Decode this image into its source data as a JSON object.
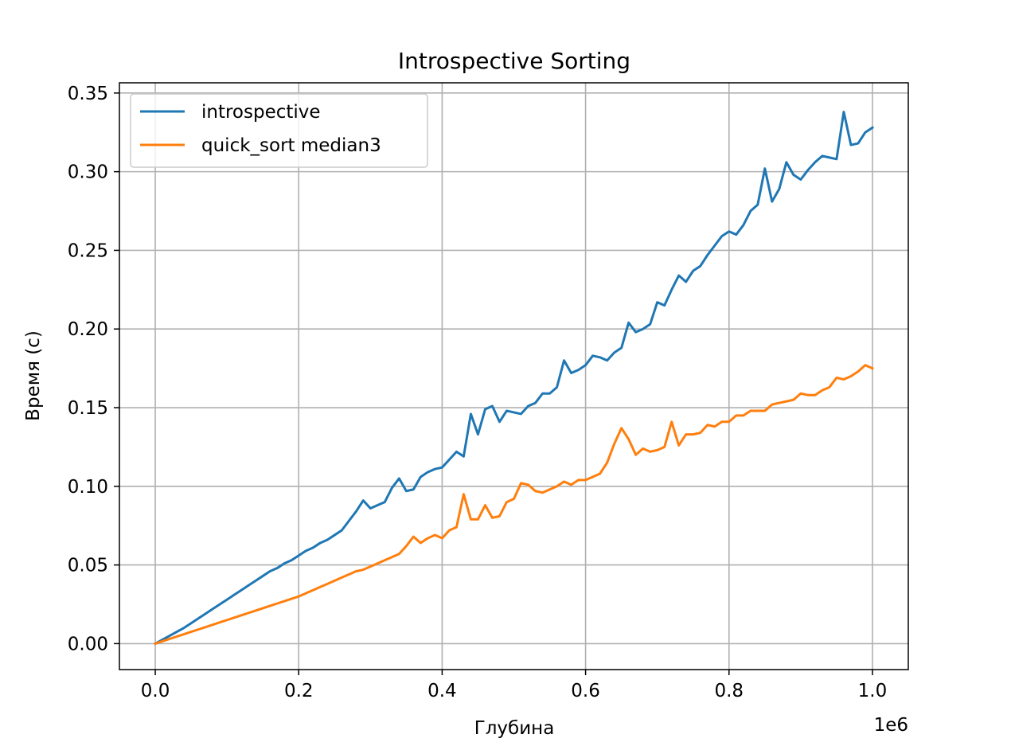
{
  "chart_data": {
    "type": "line",
    "title": "Introspective Sorting",
    "xlabel": "Глубина",
    "ylabel": "Время (с)",
    "x_offset_label": "1e6",
    "xlim": [
      -50000,
      1050000
    ],
    "ylim": [
      -0.0165,
      0.3565
    ],
    "xticks": [
      0,
      200000,
      400000,
      600000,
      800000,
      1000000
    ],
    "xtick_labels": [
      "0.0",
      "0.2",
      "0.4",
      "0.6",
      "0.8",
      "1.0"
    ],
    "yticks": [
      0,
      0.05,
      0.1,
      0.15,
      0.2,
      0.25,
      0.3,
      0.35
    ],
    "ytick_labels": [
      "0.00",
      "0.05",
      "0.10",
      "0.15",
      "0.20",
      "0.25",
      "0.30",
      "0.35"
    ],
    "grid": true,
    "legend_position": "top-left",
    "x": [
      0,
      10000,
      20000,
      30000,
      40000,
      50000,
      60000,
      70000,
      80000,
      90000,
      100000,
      110000,
      120000,
      130000,
      140000,
      150000,
      160000,
      170000,
      180000,
      190000,
      200000,
      210000,
      220000,
      230000,
      240000,
      250000,
      260000,
      270000,
      280000,
      290000,
      300000,
      310000,
      320000,
      330000,
      340000,
      350000,
      360000,
      370000,
      380000,
      390000,
      400000,
      410000,
      420000,
      430000,
      440000,
      450000,
      460000,
      470000,
      480000,
      490000,
      500000,
      510000,
      520000,
      530000,
      540000,
      550000,
      560000,
      570000,
      580000,
      590000,
      600000,
      610000,
      620000,
      630000,
      640000,
      650000,
      660000,
      670000,
      680000,
      690000,
      700000,
      710000,
      720000,
      730000,
      740000,
      750000,
      760000,
      770000,
      780000,
      790000,
      800000,
      810000,
      820000,
      830000,
      840000,
      850000,
      860000,
      870000,
      880000,
      890000,
      900000,
      910000,
      920000,
      930000,
      940000,
      950000,
      960000,
      970000,
      980000,
      990000,
      1000000
    ],
    "series": [
      {
        "name": "introspective",
        "color": "#1f77b4",
        "values": [
          0.0,
          0.0025,
          0.005,
          0.0075,
          0.01,
          0.013,
          0.016,
          0.019,
          0.022,
          0.025,
          0.028,
          0.031,
          0.034,
          0.037,
          0.04,
          0.043,
          0.046,
          0.048,
          0.051,
          0.053,
          0.056,
          0.059,
          0.061,
          0.064,
          0.066,
          0.069,
          0.072,
          0.078,
          0.084,
          0.091,
          0.086,
          0.088,
          0.09,
          0.099,
          0.105,
          0.097,
          0.098,
          0.106,
          0.109,
          0.111,
          0.112,
          0.117,
          0.122,
          0.119,
          0.146,
          0.133,
          0.149,
          0.151,
          0.141,
          0.148,
          0.147,
          0.146,
          0.151,
          0.153,
          0.159,
          0.159,
          0.163,
          0.18,
          0.172,
          0.174,
          0.177,
          0.183,
          0.182,
          0.18,
          0.185,
          0.188,
          0.204,
          0.198,
          0.2,
          0.203,
          0.217,
          0.215,
          0.225,
          0.234,
          0.23,
          0.237,
          0.24,
          0.247,
          0.253,
          0.259,
          0.262,
          0.26,
          0.266,
          0.275,
          0.279,
          0.302,
          0.281,
          0.289,
          0.306,
          0.298,
          0.295,
          0.301,
          0.306,
          0.31,
          0.309,
          0.308,
          0.338,
          0.317,
          0.318,
          0.325,
          0.328
        ]
      },
      {
        "name": "quick_sort median3",
        "color": "#ff7f0e",
        "values": [
          0.0,
          0.0015,
          0.003,
          0.0045,
          0.006,
          0.0075,
          0.009,
          0.0105,
          0.012,
          0.0135,
          0.015,
          0.0165,
          0.018,
          0.0195,
          0.021,
          0.0225,
          0.024,
          0.0255,
          0.027,
          0.0285,
          0.03,
          0.032,
          0.034,
          0.036,
          0.038,
          0.04,
          0.042,
          0.044,
          0.046,
          0.047,
          0.049,
          0.051,
          0.053,
          0.055,
          0.057,
          0.062,
          0.068,
          0.064,
          0.067,
          0.069,
          0.067,
          0.072,
          0.074,
          0.095,
          0.079,
          0.079,
          0.088,
          0.08,
          0.081,
          0.09,
          0.092,
          0.102,
          0.101,
          0.097,
          0.096,
          0.098,
          0.1,
          0.103,
          0.101,
          0.104,
          0.104,
          0.106,
          0.108,
          0.115,
          0.127,
          0.137,
          0.13,
          0.12,
          0.124,
          0.122,
          0.123,
          0.125,
          0.141,
          0.126,
          0.133,
          0.133,
          0.134,
          0.139,
          0.138,
          0.141,
          0.141,
          0.145,
          0.145,
          0.148,
          0.148,
          0.148,
          0.152,
          0.153,
          0.154,
          0.155,
          0.159,
          0.158,
          0.158,
          0.161,
          0.163,
          0.169,
          0.168,
          0.17,
          0.173,
          0.177,
          0.175
        ]
      }
    ]
  }
}
